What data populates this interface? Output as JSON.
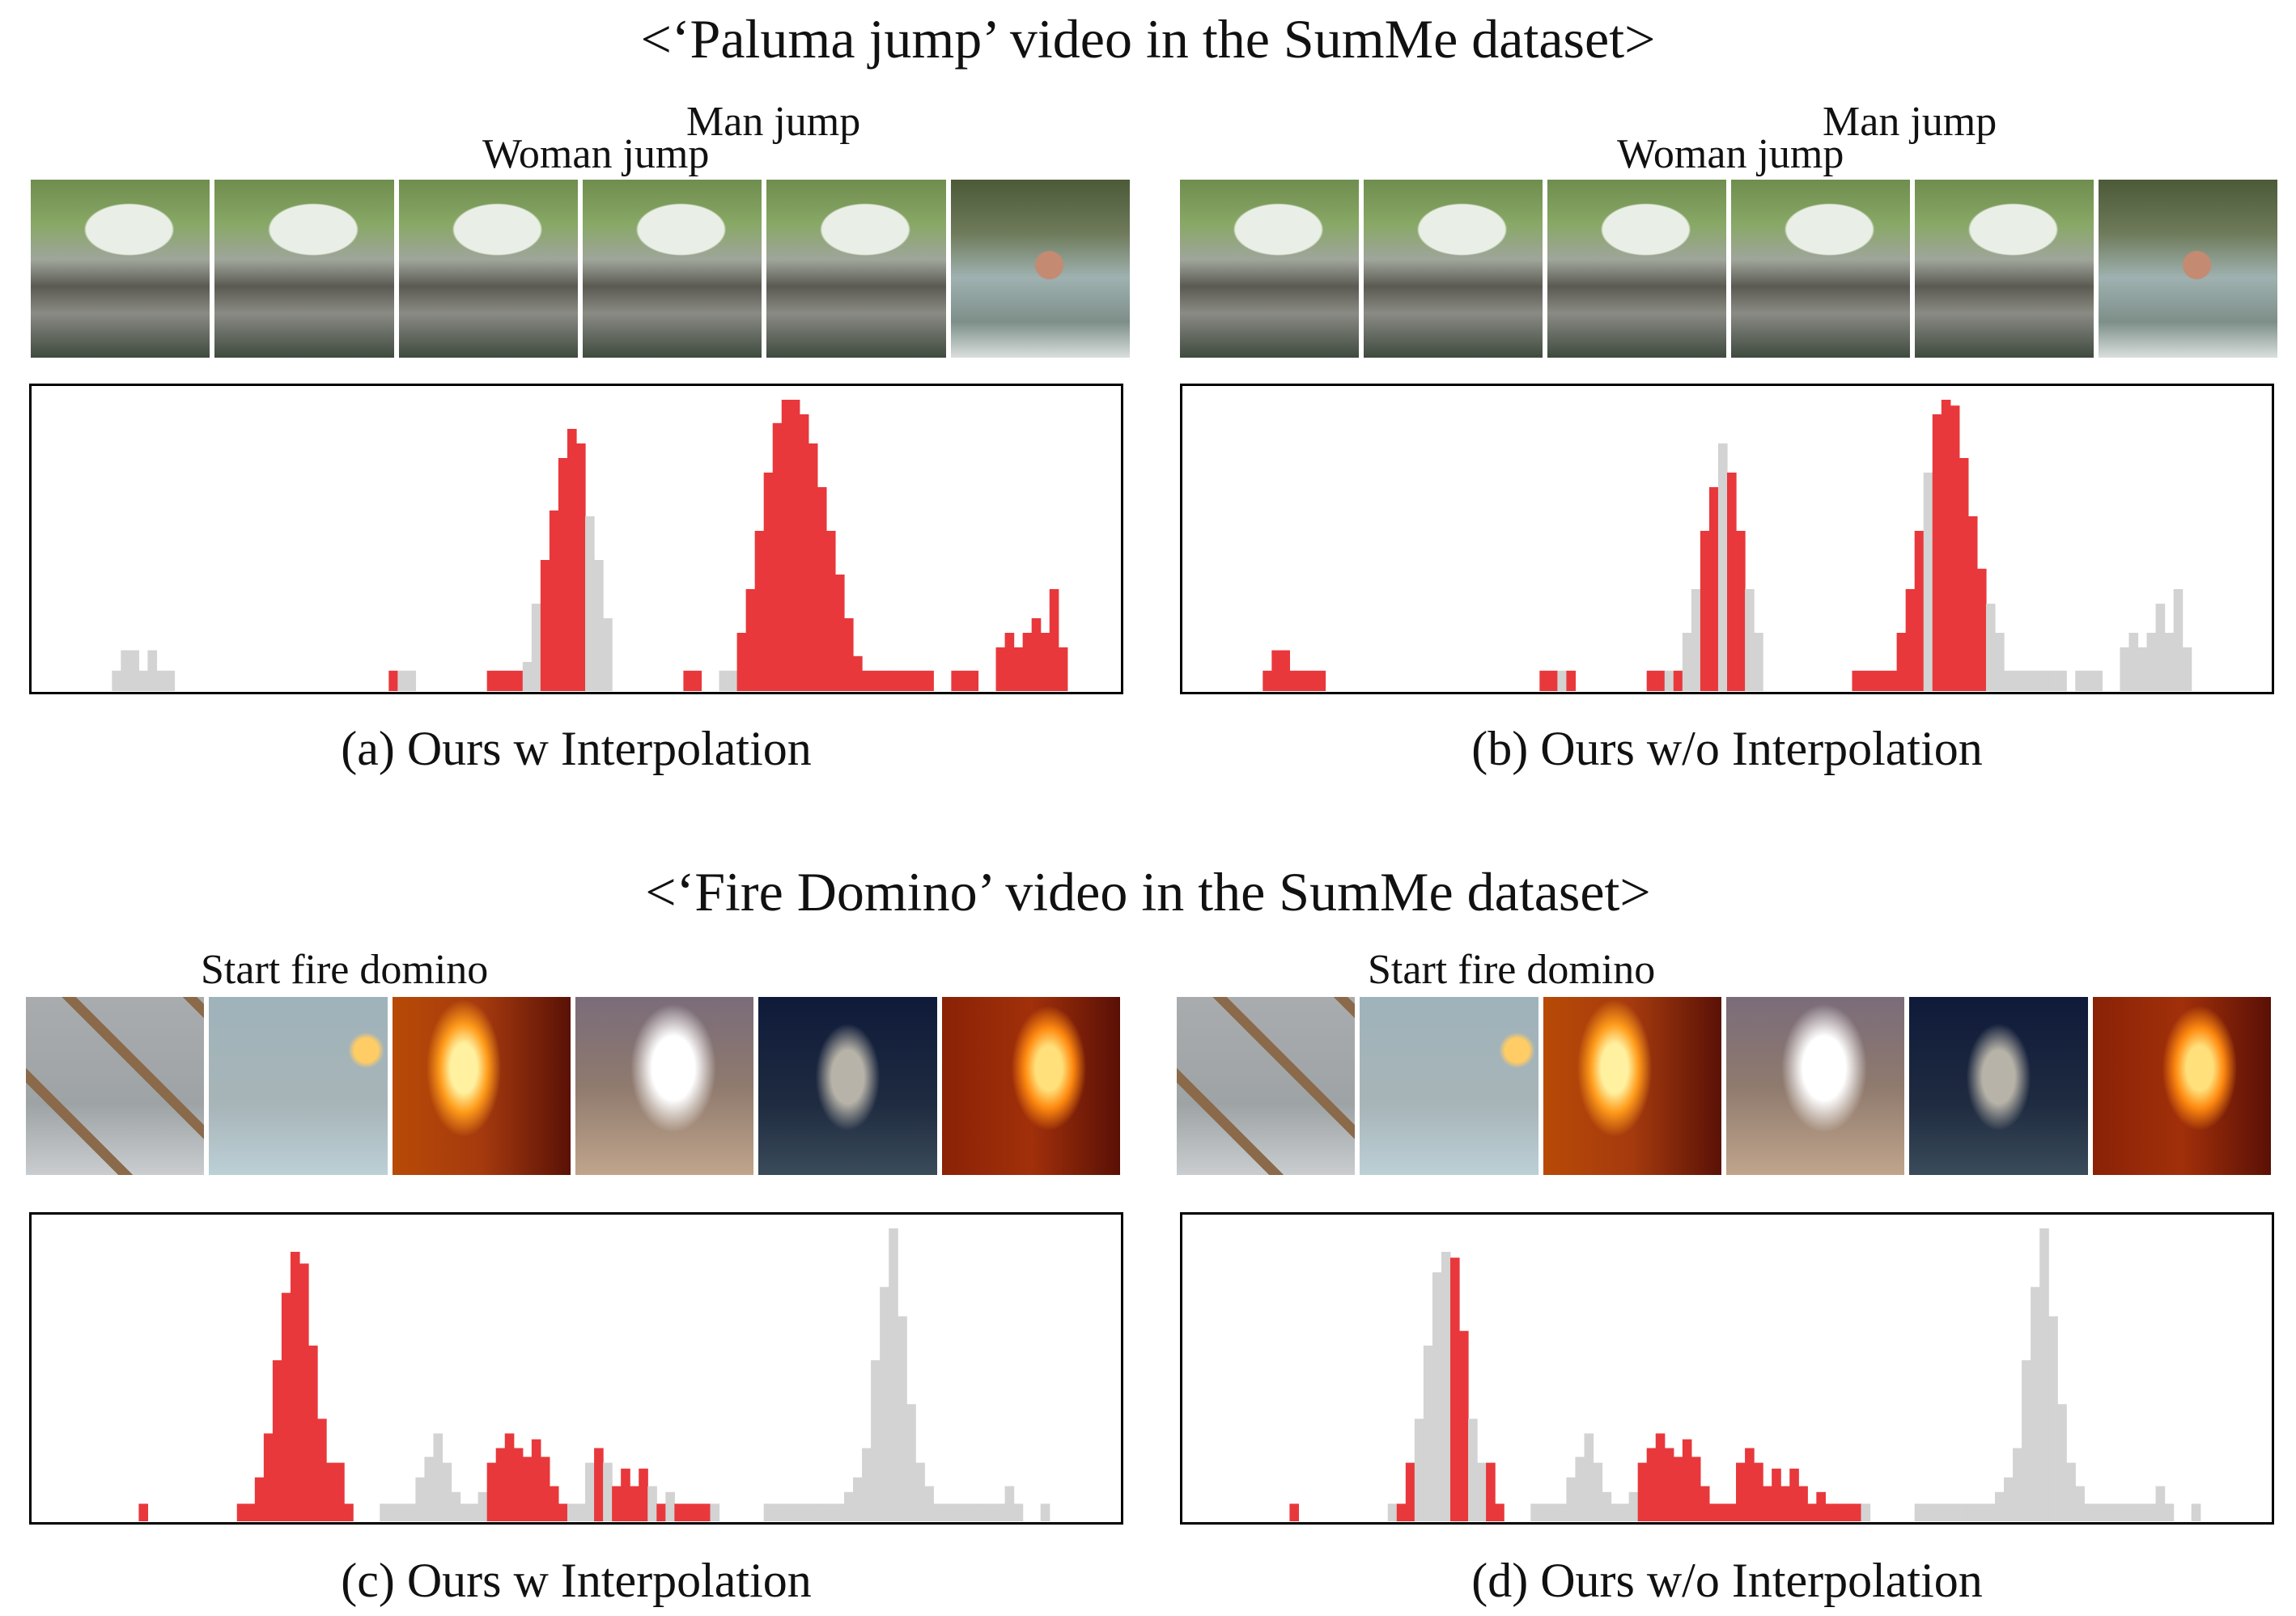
{
  "top": {
    "title": "<‘Paluma jump’ video in the SumMe dataset>",
    "annotations": {
      "woman": "Woman jump",
      "man": "Man jump"
    },
    "caption_a": "(a) Ours w Interpolation",
    "caption_b": "(b) Ours w/o Interpolation"
  },
  "bottom": {
    "title": "<‘Fire Domino’ video in the SumMe dataset>",
    "annotations": {
      "start": "Start fire domino"
    },
    "caption_c": "(c) Ours w Interpolation",
    "caption_d": "(d) Ours w/o Interpolation"
  },
  "colors": {
    "selected": "#e8383b",
    "unselected": "#d3d3d3",
    "border": "#000000"
  },
  "frames": {
    "paluma": [
      "bridge-waterfall-frame",
      "bridge-waterfall-frame",
      "bridge-waterfall-frame",
      "bridge-waterfall-frame",
      "bridge-waterfall-frame",
      "man-in-water-frame"
    ],
    "domino": [
      "matchstick-tower-grey",
      "matchstick-tower-lit",
      "flames-orange",
      "burnt-tower-smoke",
      "burnt-tower-dark",
      "flames-collapse"
    ]
  },
  "chart_data": [
    {
      "type": "bar",
      "panel": "a",
      "ylim": [
        0,
        1
      ],
      "bins": 122,
      "values": [
        0,
        0,
        0,
        0,
        0,
        0,
        0,
        0,
        0,
        0.07,
        0.14,
        0.14,
        0.07,
        0.14,
        0.07,
        0.07,
        0,
        0,
        0,
        0,
        0,
        0,
        0,
        0,
        0,
        0,
        0,
        0,
        0,
        0,
        0,
        0,
        0,
        0,
        0,
        0,
        0,
        0,
        0,
        0,
        0.07,
        0.07,
        0.07,
        0,
        0,
        0,
        0,
        0,
        0,
        0,
        0,
        0.07,
        0.07,
        0.07,
        0.07,
        0.1,
        0.3,
        0.45,
        0.62,
        0.8,
        0.9,
        0.85,
        0.6,
        0.45,
        0.25,
        0,
        0,
        0,
        0,
        0,
        0,
        0,
        0,
        0.07,
        0.07,
        0,
        0,
        0.07,
        0.07,
        0.2,
        0.35,
        0.55,
        0.75,
        0.92,
        1,
        1,
        0.95,
        0.85,
        0.7,
        0.55,
        0.4,
        0.25,
        0.12,
        0.07,
        0.07,
        0.07,
        0.07,
        0.07,
        0.07,
        0.07,
        0.07,
        0,
        0,
        0.07,
        0.07,
        0.07,
        0,
        0,
        0.15,
        0.2,
        0.15,
        0.2,
        0.25,
        0.2,
        0.35,
        0.15,
        0,
        0,
        0,
        0,
        0,
        0,
        0
      ],
      "selected": [
        9,
        10,
        11,
        12,
        13,
        14,
        15,
        40,
        41,
        42,
        51,
        52,
        53,
        54,
        57,
        58,
        59,
        60,
        61,
        62,
        63,
        73,
        74,
        77,
        78,
        79,
        80,
        81,
        82,
        83,
        84,
        85,
        86,
        87,
        88,
        89,
        90,
        91,
        92,
        93,
        94,
        95,
        96,
        97,
        98,
        99,
        100,
        103,
        104,
        105,
        108,
        109,
        110,
        111,
        112,
        113,
        114,
        115
      ],
      "grey": [
        9,
        10,
        11,
        12,
        13,
        14,
        15,
        41,
        42,
        55,
        56,
        62,
        63,
        64,
        77,
        78
      ]
    },
    {
      "type": "bar",
      "panel": "b",
      "ylim": [
        0,
        1
      ],
      "bins": 122,
      "values": [
        0,
        0,
        0,
        0,
        0,
        0,
        0,
        0,
        0,
        0.07,
        0.14,
        0.14,
        0.07,
        0.07,
        0.07,
        0.07,
        0,
        0,
        0,
        0,
        0,
        0,
        0,
        0,
        0,
        0,
        0,
        0,
        0,
        0,
        0,
        0,
        0,
        0,
        0,
        0,
        0,
        0,
        0,
        0,
        0.07,
        0.07,
        0.07,
        0.07,
        0,
        0,
        0,
        0,
        0,
        0,
        0,
        0,
        0.07,
        0.07,
        0.07,
        0.07,
        0.2,
        0.35,
        0.55,
        0.7,
        0.85,
        0.75,
        0.55,
        0.35,
        0.2,
        0,
        0,
        0,
        0,
        0,
        0,
        0,
        0,
        0,
        0,
        0.07,
        0.07,
        0.07,
        0.07,
        0.07,
        0.2,
        0.35,
        0.55,
        0.75,
        0.95,
        1,
        0.98,
        0.8,
        0.6,
        0.42,
        0.3,
        0.2,
        0.07,
        0.07,
        0.07,
        0.07,
        0.07,
        0.07,
        0.07,
        0,
        0.07,
        0.07,
        0.07,
        0,
        0,
        0.15,
        0.2,
        0.15,
        0.2,
        0.3,
        0.2,
        0.35,
        0.15,
        0,
        0,
        0,
        0,
        0,
        0,
        0
      ],
      "selected": [
        9,
        10,
        11,
        12,
        13,
        14,
        15,
        40,
        41,
        43,
        52,
        53,
        55,
        58,
        59,
        61,
        62,
        75,
        76,
        77,
        78,
        79,
        80,
        81,
        82,
        84,
        85,
        86,
        87,
        88,
        89
      ],
      "grey": [
        42,
        54,
        56,
        57,
        60,
        63,
        64,
        83,
        90,
        91,
        92,
        93,
        94,
        95,
        96,
        97,
        98,
        99,
        100,
        103,
        104,
        105,
        108,
        109,
        110,
        111,
        112,
        113,
        114,
        115,
        116
      ]
    },
    {
      "type": "bar",
      "panel": "c",
      "ylim": [
        0,
        1
      ],
      "bins": 122,
      "values": [
        0,
        0,
        0,
        0,
        0,
        0,
        0,
        0,
        0,
        0,
        0,
        0,
        0.06,
        0,
        0,
        0,
        0,
        0,
        0,
        0,
        0,
        0,
        0,
        0.06,
        0.06,
        0.15,
        0.3,
        0.55,
        0.78,
        0.92,
        0.88,
        0.6,
        0.35,
        0.2,
        0.2,
        0.06,
        0,
        0,
        0,
        0.06,
        0.06,
        0.06,
        0.06,
        0.15,
        0.22,
        0.3,
        0.2,
        0.1,
        0.06,
        0.06,
        0.1,
        0.2,
        0.25,
        0.3,
        0.25,
        0.22,
        0.28,
        0.22,
        0.12,
        0.06,
        0.06,
        0.06,
        0.2,
        0.25,
        0.2,
        0.12,
        0.18,
        0.12,
        0.18,
        0.12,
        0.06,
        0.1,
        0.06,
        0.06,
        0.06,
        0.06,
        0.06,
        0,
        0,
        0,
        0,
        0,
        0.06,
        0.06,
        0.06,
        0.06,
        0.06,
        0.06,
        0.06,
        0.06,
        0.06,
        0.1,
        0.15,
        0.25,
        0.55,
        0.8,
        1,
        0.7,
        0.4,
        0.2,
        0.12,
        0.06,
        0.06,
        0.06,
        0.06,
        0.06,
        0.06,
        0.06,
        0.06,
        0.12,
        0.06,
        0,
        0,
        0.06,
        0,
        0,
        0,
        0,
        0,
        0,
        0,
        0,
        0
      ],
      "selected": [
        12,
        23,
        24,
        25,
        26,
        27,
        28,
        29,
        30,
        31,
        32,
        33,
        34,
        35,
        51,
        52,
        53,
        54,
        55,
        56,
        57,
        58,
        59,
        63,
        64,
        65,
        66,
        67,
        68,
        69,
        70,
        71,
        72,
        73,
        74,
        75
      ],
      "grey": [
        39,
        40,
        41,
        42,
        43,
        44,
        45,
        46,
        47,
        48,
        49,
        50,
        60,
        61,
        62,
        64,
        69,
        71,
        82,
        83,
        84,
        85,
        86,
        87,
        88,
        89,
        90,
        91,
        92,
        93,
        94,
        95,
        96,
        97,
        98,
        99,
        100,
        101,
        102,
        103,
        104,
        105,
        106,
        107,
        108,
        109,
        110,
        111,
        114
      ]
    },
    {
      "type": "bar",
      "panel": "d",
      "ylim": [
        0,
        1
      ],
      "bins": 122,
      "values": [
        0,
        0,
        0,
        0,
        0,
        0,
        0,
        0,
        0,
        0,
        0,
        0,
        0.06,
        0,
        0,
        0,
        0,
        0,
        0,
        0,
        0,
        0,
        0,
        0.06,
        0.06,
        0.2,
        0.35,
        0.6,
        0.85,
        0.92,
        0.9,
        0.65,
        0.35,
        0.2,
        0.2,
        0.06,
        0,
        0,
        0,
        0.06,
        0.06,
        0.06,
        0.06,
        0.15,
        0.22,
        0.3,
        0.2,
        0.1,
        0.06,
        0.06,
        0.1,
        0.2,
        0.25,
        0.3,
        0.25,
        0.22,
        0.28,
        0.22,
        0.12,
        0.06,
        0.06,
        0.06,
        0.2,
        0.25,
        0.2,
        0.12,
        0.18,
        0.12,
        0.18,
        0.12,
        0.06,
        0.1,
        0.06,
        0.06,
        0.06,
        0.06,
        0.06,
        0,
        0,
        0,
        0,
        0,
        0.06,
        0.06,
        0.06,
        0.06,
        0.06,
        0.06,
        0.06,
        0.06,
        0.06,
        0.1,
        0.15,
        0.25,
        0.55,
        0.8,
        1,
        0.7,
        0.4,
        0.2,
        0.12,
        0.06,
        0.06,
        0.06,
        0.06,
        0.06,
        0.06,
        0.06,
        0.06,
        0.12,
        0.06,
        0,
        0,
        0.06,
        0,
        0,
        0,
        0,
        0,
        0,
        0,
        0,
        0
      ],
      "selected": [
        12,
        24,
        25,
        30,
        31,
        34,
        35,
        51,
        52,
        53,
        54,
        55,
        56,
        57,
        58,
        59,
        60,
        61,
        62,
        63,
        64,
        65,
        66,
        67,
        68,
        69,
        70,
        71,
        72,
        73,
        74,
        75
      ],
      "grey": [
        23,
        26,
        27,
        28,
        29,
        32,
        33,
        39,
        40,
        41,
        42,
        43,
        44,
        45,
        46,
        47,
        48,
        49,
        50,
        82,
        83,
        84,
        85,
        86,
        87,
        88,
        89,
        90,
        91,
        92,
        93,
        94,
        95,
        96,
        97,
        98,
        99,
        100,
        101,
        102,
        103,
        104,
        105,
        106,
        107,
        108,
        109,
        110,
        111,
        114
      ]
    }
  ]
}
